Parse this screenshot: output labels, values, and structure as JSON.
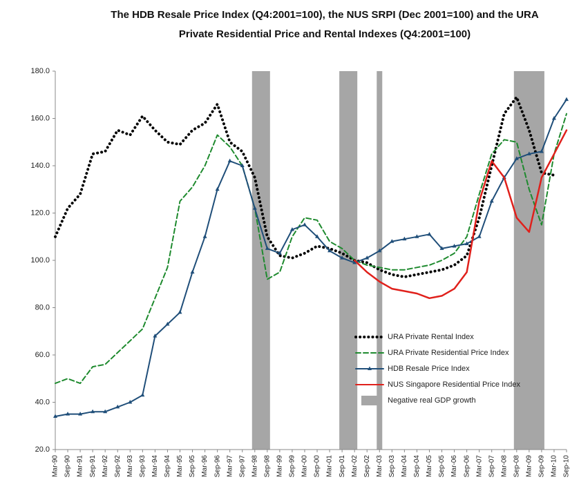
{
  "chart_data": {
    "type": "line",
    "title": [
      "The HDB Resale Price Index (Q4:2001=100), the NUS SRPI (Dec 2001=100) and the URA",
      "Private Residential Price and Rental Indexes (Q4:2001=100)"
    ],
    "categories": [
      "Mar-90",
      "Sep-90",
      "Mar-91",
      "Sep-91",
      "Mar-92",
      "Sep-92",
      "Mar-93",
      "Sep-93",
      "Mar-94",
      "Sep-94",
      "Mar-95",
      "Sep-95",
      "Mar-96",
      "Sep-96",
      "Mar-97",
      "Sep-97",
      "Mar-98",
      "Sep-98",
      "Mar-99",
      "Sep-99",
      "Mar-00",
      "Sep-00",
      "Mar-01",
      "Sep-01",
      "Mar-02",
      "Sep-02",
      "Mar-03",
      "Sep-03",
      "Mar-04",
      "Sep-04",
      "Mar-05",
      "Sep-05",
      "Mar-06",
      "Sep-06",
      "Mar-07",
      "Sep-07",
      "Mar-08",
      "Sep-08",
      "Mar-09",
      "Sep-09",
      "Mar-10",
      "Sep-10"
    ],
    "series": [
      {
        "name": "URA Private Rental Index",
        "color": "#000000",
        "style": "dotted",
        "values": [
          110,
          122,
          128,
          145,
          146,
          155,
          153,
          161,
          155,
          150,
          149,
          155,
          158,
          166,
          150,
          146,
          135,
          110,
          102,
          101,
          103,
          106,
          105,
          103,
          100,
          99,
          96,
          94,
          93,
          94,
          95,
          96,
          98,
          102,
          118,
          140,
          162,
          169,
          155,
          137,
          136,
          null
        ]
      },
      {
        "name": "URA Private Residential Price Index",
        "color": "#1e8a2e",
        "style": "dashed",
        "values": [
          48,
          50,
          48,
          55,
          56,
          61,
          66,
          71,
          84,
          97,
          125,
          131,
          140,
          153,
          148,
          140,
          122,
          92,
          95,
          110,
          118,
          117,
          108,
          105,
          100,
          98,
          97,
          96,
          96,
          97,
          98,
          100,
          103,
          110,
          128,
          145,
          151,
          150,
          130,
          115,
          145,
          162
        ]
      },
      {
        "name": "HDB Resale Price Index",
        "color": "#1f4e79",
        "style": "solid",
        "marker": "triangle",
        "values": [
          34,
          35,
          35,
          36,
          36,
          38,
          40,
          43,
          68,
          73,
          78,
          95,
          110,
          130,
          142,
          140,
          122,
          105,
          103,
          113,
          115,
          110,
          104,
          101,
          99,
          101,
          104,
          108,
          109,
          110,
          111,
          105,
          106,
          107,
          110,
          125,
          135,
          143,
          145,
          146,
          160,
          168
        ]
      },
      {
        "name": "NUS Singapore Residential Price Index",
        "color": "#e0201b",
        "style": "solid",
        "values": [
          null,
          null,
          null,
          null,
          null,
          null,
          null,
          null,
          null,
          null,
          null,
          null,
          null,
          null,
          null,
          null,
          null,
          null,
          null,
          null,
          null,
          null,
          null,
          null,
          100,
          95,
          91,
          88,
          87,
          86,
          84,
          85,
          88,
          95,
          125,
          142,
          135,
          118,
          112,
          135,
          145,
          155
        ]
      }
    ],
    "shaded_regions": {
      "name": "Negative real GDP growth",
      "color": "#a6a6a6",
      "regions": [
        {
          "start": "Mar-98",
          "end": "Sep-98"
        },
        {
          "start": "Sep-01",
          "end": "Mar-02"
        },
        {
          "start": "Mar-03",
          "end": "Mar-03"
        },
        {
          "start": "Sep-08",
          "end": "Sep-09"
        }
      ]
    },
    "ylim": [
      20,
      180
    ],
    "yticks": [
      {
        "value": 20,
        "label": "20.0"
      },
      {
        "value": 40,
        "label": "40.0"
      },
      {
        "value": 60,
        "label": "60.0"
      },
      {
        "value": 80,
        "label": "80.0"
      },
      {
        "value": 100,
        "label": "100.0"
      },
      {
        "value": 120,
        "label": "120.0"
      },
      {
        "value": 140,
        "label": "140.0"
      },
      {
        "value": 160,
        "label": "160.0"
      },
      {
        "value": 180,
        "label": "180.0"
      }
    ],
    "grid": false,
    "legend": "lower right"
  }
}
